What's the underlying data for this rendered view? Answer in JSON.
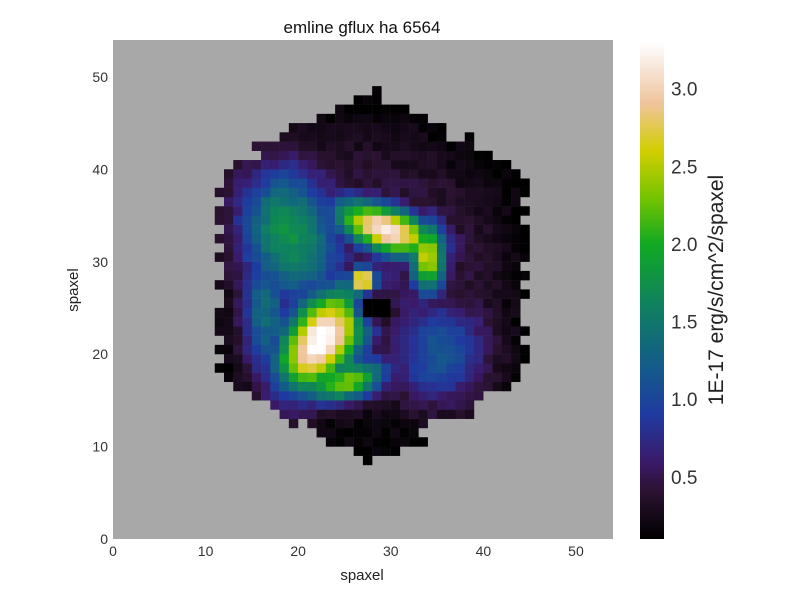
{
  "chart_data": {
    "type": "heatmap",
    "title": "emline gflux ha 6564",
    "xlabel": "spaxel",
    "ylabel": "spaxel",
    "xlim": [
      0,
      54
    ],
    "ylim": [
      0,
      54
    ],
    "xticks": [
      0,
      10,
      20,
      30,
      40,
      50
    ],
    "yticks": [
      0,
      10,
      20,
      30,
      40,
      50
    ],
    "grid": false,
    "background_color": "#a8a8a8",
    "colormap": "cubehelix-like",
    "colorbar": {
      "label": "1E-17 erg/s/cm^2/spaxel",
      "range": [
        0.1,
        3.3
      ],
      "ticks": [
        0.5,
        1.0,
        1.5,
        2.0,
        2.5,
        3.0
      ],
      "tick_labels": [
        "0.5",
        "1.0",
        "1.5",
        "2.0",
        "2.5",
        "3.0"
      ],
      "stops": [
        {
          "value": 0.1,
          "color": "#000000"
        },
        {
          "value": 0.4,
          "color": "#2a1230"
        },
        {
          "value": 0.6,
          "color": "#3a1a6a"
        },
        {
          "value": 0.9,
          "color": "#1f3aa0"
        },
        {
          "value": 1.2,
          "color": "#145a8a"
        },
        {
          "value": 1.6,
          "color": "#0f8060"
        },
        {
          "value": 2.0,
          "color": "#11aa22"
        },
        {
          "value": 2.3,
          "color": "#77c400"
        },
        {
          "value": 2.6,
          "color": "#d2ce00"
        },
        {
          "value": 2.9,
          "color": "#f0c49a"
        },
        {
          "value": 3.15,
          "color": "#f8e8dd"
        },
        {
          "value": 3.3,
          "color": "#ffffff"
        }
      ]
    },
    "hexagon_vertices": [
      [
        28,
        49
      ],
      [
        44.5,
        39.5
      ],
      [
        44.5,
        17.5
      ],
      [
        28,
        8
      ],
      [
        11.5,
        17.5
      ],
      [
        11.5,
        39.5
      ]
    ],
    "center": [
      27.5,
      28.5
    ],
    "features": [
      {
        "type": "arm",
        "x": 29.5,
        "y": 33.5,
        "sx": 4.2,
        "sy": 1.8,
        "angle": -20,
        "amp": 3.1
      },
      {
        "type": "arm",
        "x": 34.0,
        "y": 30.5,
        "sx": 1.4,
        "sy": 2.8,
        "angle": 0,
        "amp": 2.5
      },
      {
        "type": "arm",
        "x": 22.5,
        "y": 21.5,
        "sx": 2.8,
        "sy": 4.6,
        "angle": -35,
        "amp": 3.3
      },
      {
        "type": "arm",
        "x": 25.0,
        "y": 17.0,
        "sx": 3.5,
        "sy": 1.5,
        "angle": 15,
        "amp": 2.2
      },
      {
        "type": "nucleus",
        "x": 27.0,
        "y": 28.0,
        "sx": 1.0,
        "sy": 1.0,
        "angle": 0,
        "amp": 3.3
      },
      {
        "type": "hole",
        "x": 28.0,
        "y": 25.0,
        "sx": 1.1,
        "sy": 0.8,
        "angle": 0,
        "amp": 2.0
      },
      {
        "type": "outer_arm",
        "x": 19.0,
        "y": 33.0,
        "sx": 4.0,
        "sy": 6.0,
        "angle": 20,
        "amp": 1.6
      },
      {
        "type": "outer_arm",
        "x": 35.5,
        "y": 20.0,
        "sx": 4.0,
        "sy": 4.5,
        "angle": 20,
        "amp": 1.0
      },
      {
        "type": "outer_arm",
        "x": 16.5,
        "y": 24.5,
        "sx": 2.0,
        "sy": 6.0,
        "angle": 0,
        "amp": 1.2
      },
      {
        "type": "disk",
        "x": 27.5,
        "y": 28.5,
        "sx": 12.0,
        "sy": 12.0,
        "angle": 0,
        "amp": 0.6
      }
    ]
  }
}
